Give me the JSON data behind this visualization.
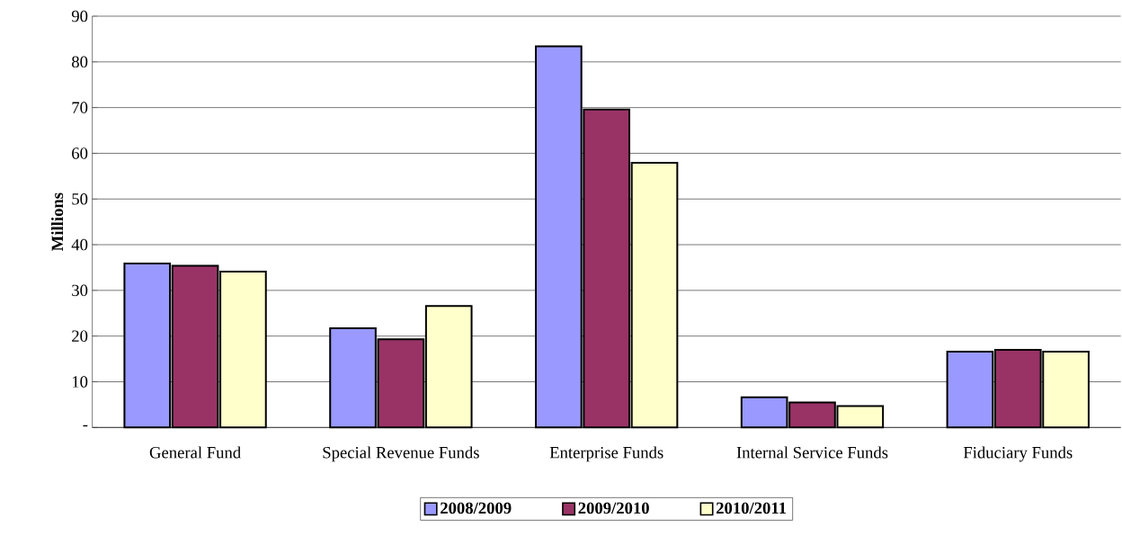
{
  "chart_data": {
    "type": "bar",
    "ylabel": "Millions",
    "categories": [
      "General Fund",
      "Special Revenue Funds",
      "Enterprise Funds",
      "Internal Service Funds",
      "Fiduciary Funds"
    ],
    "series": [
      {
        "name": "2008/2009",
        "color": "#9999ff",
        "values": [
          35.9,
          21.7,
          83.4,
          6.6,
          16.6
        ]
      },
      {
        "name": "2009/2010",
        "color": "#993366",
        "values": [
          35.4,
          19.3,
          69.6,
          5.5,
          17.0
        ]
      },
      {
        "name": "2010/2011",
        "color": "#ffffcc",
        "values": [
          34.1,
          26.6,
          57.9,
          4.7,
          16.6
        ]
      }
    ],
    "ylim": [
      0,
      90
    ],
    "yticks": [
      {
        "value": 0,
        "label": "-"
      },
      10,
      20,
      30,
      40,
      50,
      60,
      70,
      80,
      90
    ],
    "grid": "y",
    "legend": "bottom"
  }
}
